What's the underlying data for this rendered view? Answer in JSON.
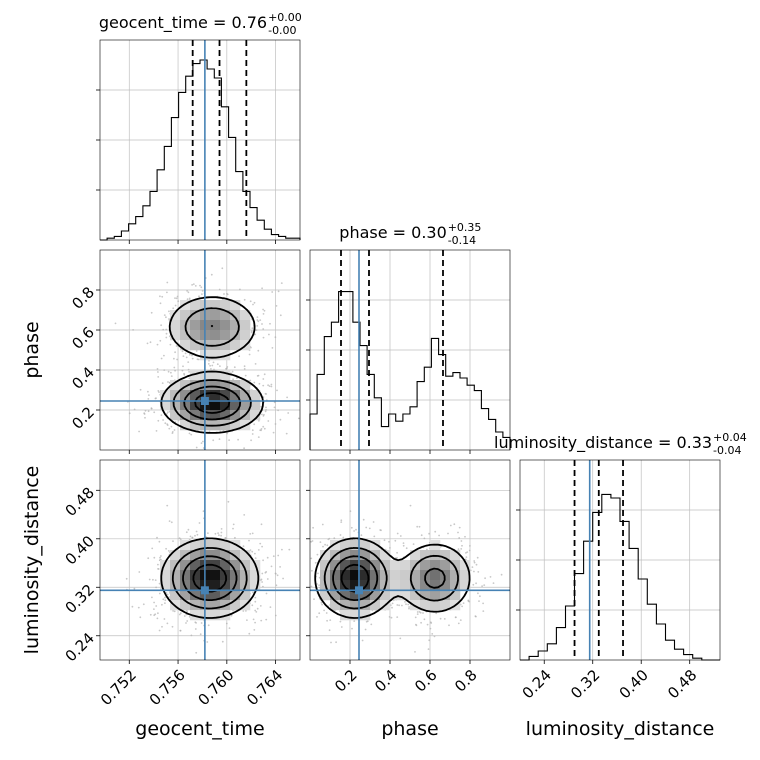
{
  "chart_data": {
    "type": "corner",
    "parameters": [
      {
        "name": "geocent_time",
        "label": "geocent_time",
        "median": "0.76",
        "plus": "+0.00",
        "minus": "-0.00",
        "truth": 0.7582,
        "range": [
          0.7496,
          0.766
        ],
        "quantiles": [
          0.7572,
          0.7594,
          0.7616
        ],
        "ticks": [
          {
            "value": 0.752,
            "label": "0.752"
          },
          {
            "value": 0.756,
            "label": "0.756"
          },
          {
            "value": 0.76,
            "label": "0.760"
          },
          {
            "value": 0.764,
            "label": "0.764"
          }
        ],
        "hist": [
          0.0,
          0.01,
          0.02,
          0.05,
          0.09,
          0.13,
          0.19,
          0.27,
          0.39,
          0.52,
          0.68,
          0.82,
          0.91,
          0.98,
          1.0,
          0.95,
          0.9,
          0.74,
          0.57,
          0.38,
          0.27,
          0.18,
          0.11,
          0.06,
          0.03,
          0.02,
          0.01,
          0.01
        ]
      },
      {
        "name": "phase",
        "label": "phase",
        "median": "0.30",
        "plus": "+0.35",
        "minus": "-0.14",
        "truth": 0.245,
        "range": [
          0.0,
          1.0
        ],
        "quantiles": [
          0.155,
          0.295,
          0.665
        ],
        "ticks": [
          {
            "value": 0.2,
            "label": "0.2"
          },
          {
            "value": 0.4,
            "label": "0.4"
          },
          {
            "value": 0.6,
            "label": "0.6"
          },
          {
            "value": 0.8,
            "label": "0.8"
          }
        ],
        "hist": [
          0.2,
          0.42,
          0.63,
          0.71,
          0.88,
          0.88,
          0.71,
          0.58,
          0.42,
          0.29,
          0.13,
          0.2,
          0.16,
          0.2,
          0.24,
          0.38,
          0.46,
          0.62,
          0.53,
          0.41,
          0.43,
          0.4,
          0.36,
          0.33,
          0.23,
          0.17,
          0.1,
          0.07
        ]
      },
      {
        "name": "luminosity_distance",
        "label": "luminosity_distance",
        "median": "0.33",
        "plus": "+0.04",
        "minus": "-0.04",
        "truth": 0.315,
        "range": [
          0.2,
          0.53
        ],
        "quantiles": [
          0.29,
          0.33,
          0.37
        ],
        "ticks": [
          {
            "value": 0.24,
            "label": "0.24"
          },
          {
            "value": 0.32,
            "label": "0.32"
          },
          {
            "value": 0.4,
            "label": "0.40"
          },
          {
            "value": 0.48,
            "label": "0.48"
          }
        ],
        "hist": [
          0.0,
          0.02,
          0.05,
          0.09,
          0.18,
          0.3,
          0.48,
          0.66,
          0.82,
          0.92,
          0.9,
          0.77,
          0.62,
          0.45,
          0.31,
          0.2,
          0.11,
          0.06,
          0.03,
          0.01,
          0.0,
          0.0
        ]
      }
    ],
    "pairs": [
      {
        "row": 1,
        "col": 0,
        "modes": [
          {
            "cx": 0.7588,
            "cy": 0.615,
            "sx": 0.0021,
            "sy": 0.09,
            "w": 0.55
          },
          {
            "cx": 0.7588,
            "cy": 0.235,
            "sx": 0.0021,
            "sy": 0.075,
            "w": 1.0
          }
        ]
      },
      {
        "row": 2,
        "col": 0,
        "modes": [
          {
            "cx": 0.7586,
            "cy": 0.335,
            "sx": 0.002,
            "sy": 0.033,
            "w": 1.0
          }
        ]
      },
      {
        "row": 2,
        "col": 1,
        "modes": [
          {
            "cx": 0.225,
            "cy": 0.335,
            "sx": 0.1,
            "sy": 0.033,
            "w": 1.0
          },
          {
            "cx": 0.625,
            "cy": 0.335,
            "sx": 0.1,
            "sy": 0.032,
            "w": 0.62
          }
        ]
      }
    ],
    "colors": {
      "truth": "#4682b4",
      "hist": "#000000",
      "grid": "#bfbfbf",
      "samples": "#b0b0b0"
    }
  }
}
